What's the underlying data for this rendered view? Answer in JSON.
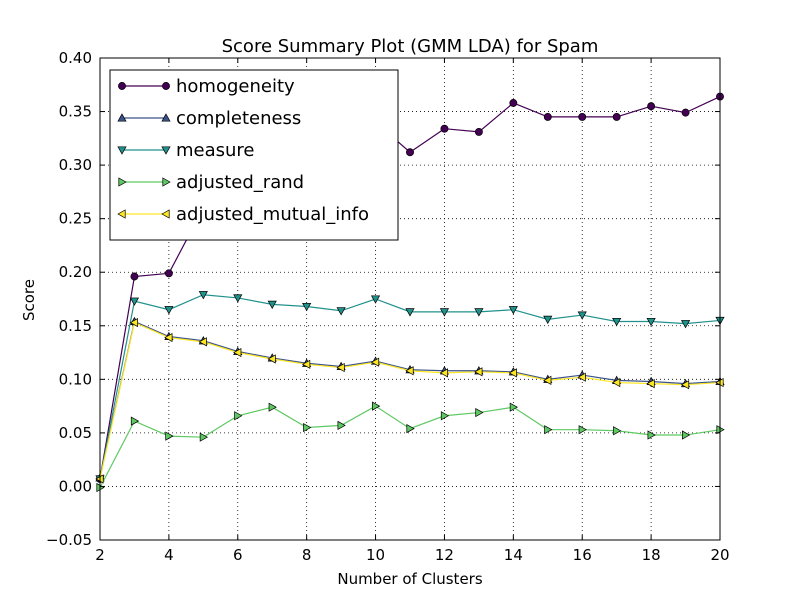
{
  "chart_data": {
    "type": "line",
    "title": "Score Summary Plot (GMM LDA) for Spam",
    "xlabel": "Number of Clusters",
    "ylabel": "Score",
    "xlim": [
      2,
      20
    ],
    "ylim": [
      -0.05,
      0.4
    ],
    "x_ticks": [
      "2",
      "4",
      "6",
      "8",
      "10",
      "12",
      "14",
      "16",
      "18",
      "20"
    ],
    "y_ticks": [
      "−0.05",
      "0.00",
      "0.05",
      "0.10",
      "0.15",
      "0.20",
      "0.25",
      "0.30",
      "0.35",
      "0.40"
    ],
    "grid": true,
    "legend_position": "top-left",
    "x": [
      2,
      3,
      4,
      5,
      6,
      7,
      8,
      9,
      10,
      11,
      12,
      13,
      14,
      15,
      16,
      17,
      18,
      19,
      20
    ],
    "series": [
      {
        "name": "homogeneity",
        "color": "#440154",
        "marker": "circle",
        "values": [
          0.007,
          0.196,
          0.199,
          0.26,
          0.3,
          0.32,
          0.33,
          0.335,
          0.34,
          0.312,
          0.334,
          0.331,
          0.358,
          0.345,
          0.345,
          0.345,
          0.355,
          0.349,
          0.364
        ]
      },
      {
        "name": "completeness",
        "color": "#3b528b",
        "marker": "triangle-up",
        "values": [
          0.008,
          0.154,
          0.14,
          0.136,
          0.126,
          0.12,
          0.115,
          0.112,
          0.117,
          0.109,
          0.108,
          0.108,
          0.107,
          0.1,
          0.104,
          0.099,
          0.098,
          0.096,
          0.098
        ]
      },
      {
        "name": "measure",
        "color": "#21918c",
        "marker": "triangle-down",
        "values": [
          0.007,
          0.173,
          0.165,
          0.179,
          0.176,
          0.17,
          0.168,
          0.164,
          0.175,
          0.163,
          0.163,
          0.163,
          0.165,
          0.156,
          0.16,
          0.154,
          0.154,
          0.152,
          0.155
        ]
      },
      {
        "name": "adjusted_rand",
        "color": "#5ec962",
        "marker": "triangle-right",
        "values": [
          -0.001,
          0.061,
          0.047,
          0.046,
          0.066,
          0.074,
          0.055,
          0.057,
          0.075,
          0.054,
          0.066,
          0.069,
          0.074,
          0.053,
          0.053,
          0.052,
          0.048,
          0.048,
          0.053
        ]
      },
      {
        "name": "adjusted_mutual_info",
        "color": "#fde725",
        "marker": "triangle-left",
        "values": [
          0.007,
          0.153,
          0.139,
          0.135,
          0.125,
          0.119,
          0.114,
          0.111,
          0.116,
          0.108,
          0.106,
          0.107,
          0.106,
          0.099,
          0.102,
          0.097,
          0.096,
          0.095,
          0.097
        ]
      }
    ]
  }
}
